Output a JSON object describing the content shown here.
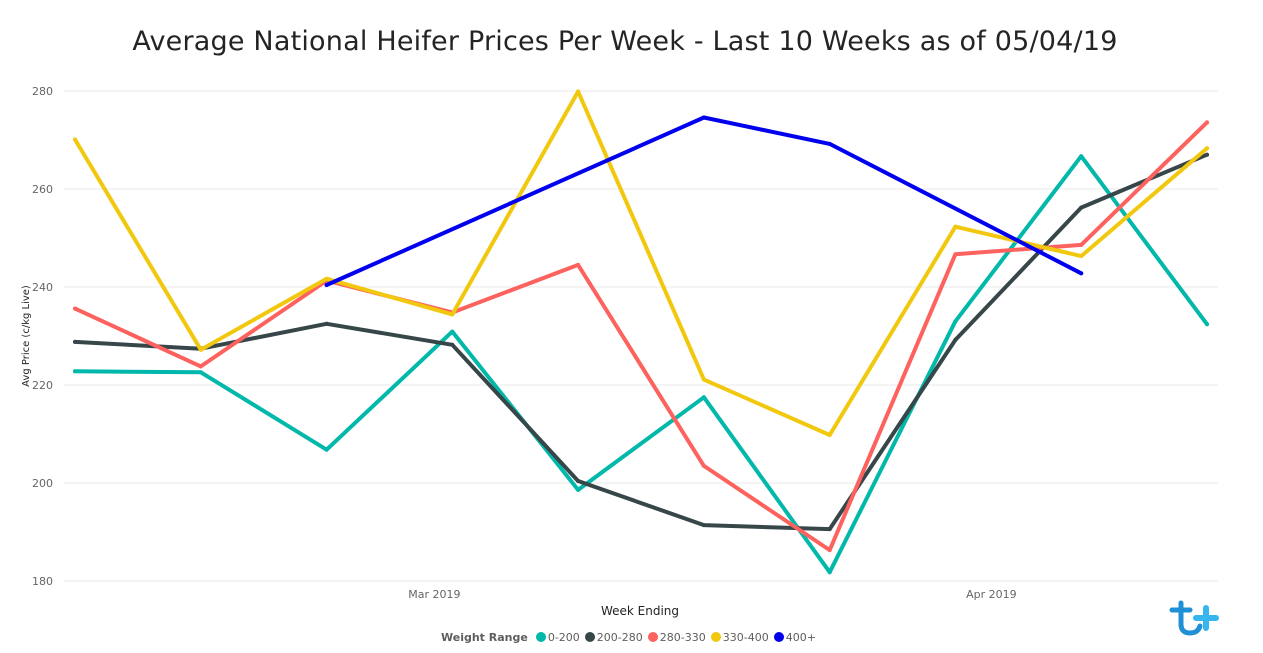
{
  "chart_data": {
    "type": "line",
    "title": "Average National Heifer Prices Per Week - Last 10 Weeks as of 05/04/19",
    "xlabel": "Week Ending",
    "ylabel": "Avg Price (c/kg Live)",
    "ylim": [
      180,
      280
    ],
    "yticks": [
      200,
      220,
      240,
      260,
      280,
      180
    ],
    "x_dates": [
      "2019-02-09",
      "2019-02-16",
      "2019-02-23",
      "2019-03-02",
      "2019-03-09",
      "2019-03-16",
      "2019-03-23",
      "2019-03-30",
      "2019-04-06",
      "2019-04-13"
    ],
    "xlim_dates": [
      "2019-02-09",
      "2019-04-13"
    ],
    "xtick_dates": [
      "2019-03-01",
      "2019-04-01"
    ],
    "xtick_labels": [
      "Mar 2019",
      "Apr 2019"
    ],
    "grid": true,
    "legend_position": "bottom-center",
    "legend_title": "Weight Range",
    "series": [
      {
        "name": "0-200",
        "color": "#01b8aa",
        "values": [
          222.8,
          222.6,
          206.8,
          230.9,
          198.6,
          217.5,
          181.8,
          233.0,
          266.7,
          232.4
        ]
      },
      {
        "name": "200-280",
        "color": "#374649",
        "values": [
          228.8,
          227.4,
          232.5,
          228.2,
          200.4,
          191.4,
          190.6,
          229.2,
          256.2,
          267.0
        ]
      },
      {
        "name": "280-330",
        "color": "#fd625e",
        "values": [
          235.6,
          223.8,
          241.3,
          234.8,
          244.5,
          203.5,
          186.3,
          246.7,
          248.6,
          273.6
        ]
      },
      {
        "name": "330-400",
        "color": "#f2c80f",
        "values": [
          270.1,
          227.2,
          241.7,
          234.4,
          279.9,
          221.1,
          209.8,
          252.3,
          246.3,
          268.3
        ]
      },
      {
        "name": "400+",
        "color": "#0000ee",
        "values": [
          null,
          null,
          240.4,
          null,
          null,
          274.6,
          269.2,
          null,
          242.8,
          null
        ]
      }
    ]
  }
}
